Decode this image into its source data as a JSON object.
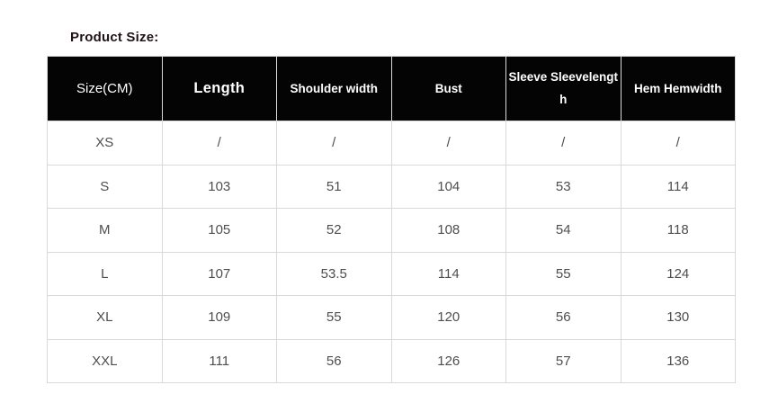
{
  "title": "Product Size:",
  "size_table": {
    "headers": [
      "Size(CM)",
      "Length",
      "Shoulder width",
      "Bust",
      "Sleeve Sleevelength",
      "Hem Hemwidth"
    ],
    "rows": [
      [
        "XS",
        "/",
        "/",
        "/",
        "/",
        "/"
      ],
      [
        "S",
        "103",
        "51",
        "104",
        "53",
        "114"
      ],
      [
        "M",
        "105",
        "52",
        "108",
        "54",
        "118"
      ],
      [
        "L",
        "107",
        "53.5",
        "114",
        "55",
        "124"
      ],
      [
        "XL",
        "109",
        "55",
        "120",
        "56",
        "130"
      ],
      [
        "XXL",
        "111",
        "56",
        "126",
        "57",
        "136"
      ]
    ]
  },
  "colors": {
    "header_background": "#040404",
    "header_text": "#ffffff",
    "body_text": "#4e4e4e",
    "border": "#d9d9d9",
    "title_text": "#201218",
    "page_background": "#ffffff"
  }
}
